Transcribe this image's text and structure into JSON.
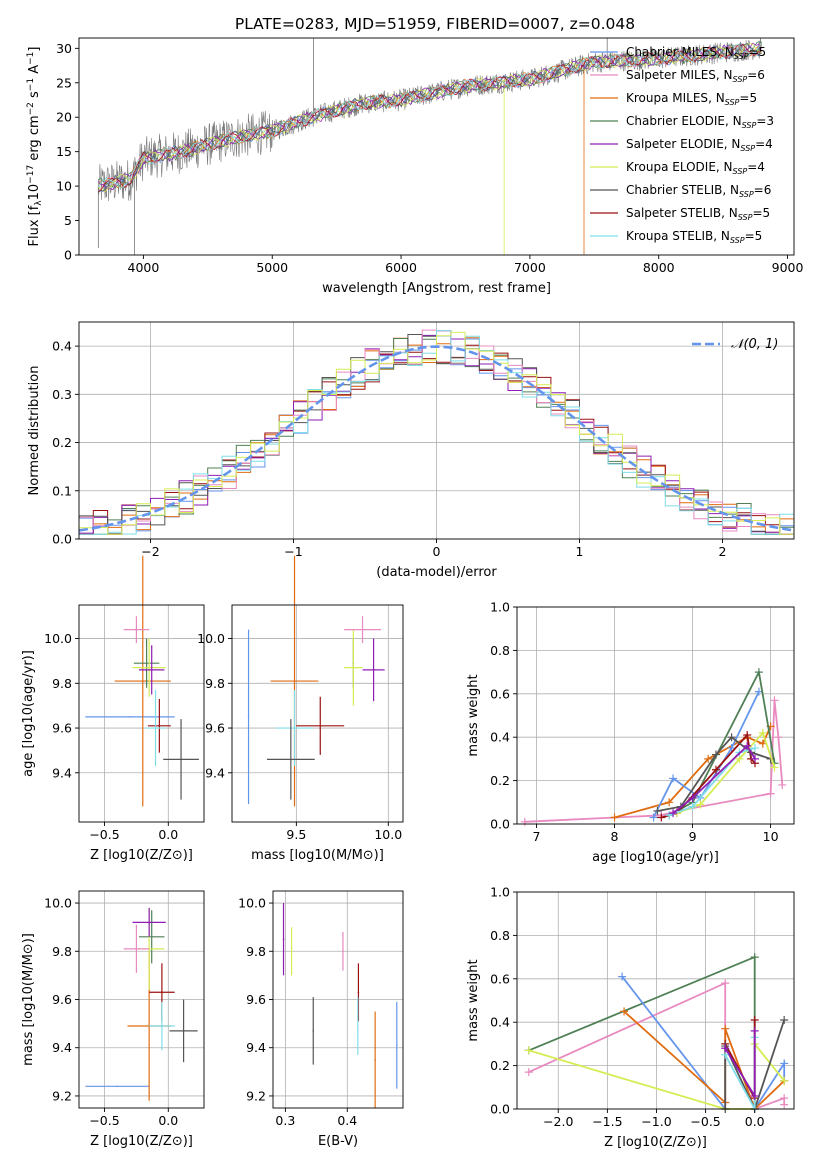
{
  "colors": {
    "blue": "#6495ED",
    "orange": "#E06C10",
    "green": "#4F8055",
    "red": "#9B1111",
    "purple": "#8E1DB5",
    "gray": "#555555",
    "pink": "#E88AC0",
    "cyan": "#7FDDE8",
    "yellow": "#D6EC55",
    "grid": "#b0b0b0"
  },
  "figure_title": "PLATE=0283, MJD=51959, FIBERID=0007, z=0.048",
  "chart_data": [
    {
      "id": "spectrum",
      "type": "line",
      "title": "PLATE=0283, MJD=51959, FIBERID=0007, z=0.048",
      "xlabel": "wavelength [Angstrom, rest frame]",
      "ylabel_main": "Flux [f",
      "ylabel_sub": "λ",
      "ylabel_mid": "10",
      "ylabel_sup": "−17",
      "ylabel_rest": " erg cm",
      "ylabel_sup2": "−2",
      "ylabel_rest2": " s",
      "ylabel_sup3": "−1",
      "ylabel_rest3": " A",
      "ylabel_sup4": "−1",
      "ylabel_end": "]",
      "xlim": [
        3500,
        9050
      ],
      "ylim": [
        0,
        31.5
      ],
      "xticks": [
        4000,
        5000,
        6000,
        7000,
        8000,
        9000
      ],
      "yticks": [
        0,
        5,
        10,
        15,
        20,
        25,
        30
      ],
      "grid": false,
      "legend_position": "right",
      "data_range": [
        3650,
        8800
      ],
      "continuum": [
        [
          3650,
          10
        ],
        [
          3900,
          11
        ],
        [
          4000,
          14
        ],
        [
          4300,
          15
        ],
        [
          4700,
          17
        ],
        [
          5000,
          18
        ],
        [
          5300,
          20
        ],
        [
          5700,
          22
        ],
        [
          6000,
          22.5
        ],
        [
          6500,
          24.5
        ],
        [
          7000,
          25.5
        ],
        [
          7500,
          28
        ],
        [
          8000,
          28.5
        ],
        [
          8800,
          30
        ]
      ],
      "series": [
        {
          "name": "Chabrier MILES",
          "nssp": "5",
          "color": "blue"
        },
        {
          "name": "Salpeter MILES",
          "nssp": "6",
          "color": "pink"
        },
        {
          "name": "Kroupa MILES",
          "nssp": "5",
          "color": "orange"
        },
        {
          "name": "Chabrier ELODIE",
          "nssp": "3",
          "color": "green"
        },
        {
          "name": "Salpeter ELODIE",
          "nssp": "4",
          "color": "purple"
        },
        {
          "name": "Kroupa ELODIE",
          "nssp": "4",
          "color": "yellow"
        },
        {
          "name": "Chabrier STELIB",
          "nssp": "6",
          "color": "gray"
        },
        {
          "name": "Salpeter STELIB",
          "nssp": "5",
          "color": "red"
        },
        {
          "name": "Kroupa STELIB",
          "nssp": "5",
          "color": "cyan"
        }
      ]
    },
    {
      "id": "residual-hist",
      "type": "line",
      "xlabel": "(data-model)/error",
      "ylabel": "Normed distribution",
      "xlim": [
        -2.5,
        2.5
      ],
      "ylim": [
        0,
        0.45
      ],
      "xticks": [
        -2,
        -1,
        0,
        1,
        2
      ],
      "yticks": [
        0.0,
        0.1,
        0.2,
        0.3,
        0.4
      ],
      "grid": true,
      "legend": "𝒩(0, 1)",
      "legend_position": "top-right",
      "bin_width": 0.1
    },
    {
      "id": "age-vs-Z",
      "type": "scatter",
      "xlabel": "Z [log10(Z/Z⊙)]",
      "ylabel": "age  [log10(age/yr)]",
      "xlim": [
        -0.7,
        0.28
      ],
      "ylim": [
        9.18,
        10.15
      ],
      "xticks": [
        -0.5,
        0.0
      ],
      "yticks": [
        9.4,
        9.6,
        9.8,
        10.0
      ],
      "grid": true,
      "points": [
        {
          "color": "blue",
          "x": -0.3,
          "y": 9.65,
          "xerr": 0.35,
          "yerr": 0.0
        },
        {
          "color": "orange",
          "x": -0.2,
          "y": 9.81,
          "xerr": 0.22,
          "yerr": 0.56
        },
        {
          "color": "green",
          "x": -0.17,
          "y": 9.89,
          "xerr": 0.1,
          "yerr": 0.11
        },
        {
          "color": "yellow",
          "x": -0.15,
          "y": 9.87,
          "xerr": 0.13,
          "yerr": 0.13
        },
        {
          "color": "purple",
          "x": -0.13,
          "y": 9.86,
          "xerr": 0.1,
          "yerr": 0.11
        },
        {
          "color": "pink",
          "x": -0.25,
          "y": 10.04,
          "xerr": 0.1,
          "yerr": 0.06
        },
        {
          "color": "red",
          "x": -0.07,
          "y": 9.61,
          "xerr": 0.09,
          "yerr": 0.12
        },
        {
          "color": "cyan",
          "x": -0.1,
          "y": 9.6,
          "xerr": 0.08,
          "yerr": 0.17
        },
        {
          "color": "gray",
          "x": 0.1,
          "y": 9.46,
          "xerr": 0.14,
          "yerr": 0.18
        }
      ]
    },
    {
      "id": "age-vs-mass",
      "type": "scatter",
      "xlabel": "mass [log10(M/M⊙)]",
      "ylabel": "",
      "xlim": [
        9.15,
        10.08
      ],
      "ylim": [
        9.18,
        10.15
      ],
      "xticks": [
        9.5,
        10.0
      ],
      "yticks": [
        9.4,
        9.6,
        9.8,
        10.0
      ],
      "grid": true,
      "points": [
        {
          "color": "blue",
          "x": 9.24,
          "y": 9.65,
          "xerr": 0.0,
          "yerr": 0.39
        },
        {
          "color": "orange",
          "x": 9.49,
          "y": 9.81,
          "xerr": 0.13,
          "yerr": 0.56
        },
        {
          "color": "green",
          "x": 9.81,
          "y": 9.89,
          "xerr": 0.0,
          "yerr": 0.11
        },
        {
          "color": "yellow",
          "x": 9.81,
          "y": 9.87,
          "xerr": 0.05,
          "yerr": 0.17
        },
        {
          "color": "purple",
          "x": 9.92,
          "y": 9.86,
          "xerr": 0.06,
          "yerr": 0.14
        },
        {
          "color": "pink",
          "x": 9.86,
          "y": 10.04,
          "xerr": 0.1,
          "yerr": 0.06
        },
        {
          "color": "red",
          "x": 9.63,
          "y": 9.61,
          "xerr": 0.13,
          "yerr": 0.13
        },
        {
          "color": "cyan",
          "x": 9.49,
          "y": 9.6,
          "xerr": 0.1,
          "yerr": 0.17
        },
        {
          "color": "gray",
          "x": 9.47,
          "y": 9.46,
          "xerr": 0.13,
          "yerr": 0.18
        }
      ]
    },
    {
      "id": "mass-weight-vs-age",
      "type": "line",
      "xlabel": "age  [log10(age/yr)]",
      "ylabel": "mass weight",
      "xlim": [
        6.75,
        10.3
      ],
      "ylim": [
        0,
        1.0
      ],
      "xticks": [
        7,
        8,
        9,
        10
      ],
      "yticks": [
        0.0,
        0.2,
        0.4,
        0.6,
        0.8,
        1.0
      ],
      "grid": true,
      "series": [
        {
          "color": "pink",
          "x": [
            6.85,
            8.6,
            8.8,
            10.0,
            10.05,
            10.1,
            10.15
          ],
          "y": [
            0.01,
            0.04,
            0.06,
            0.14,
            0.57,
            0.4,
            0.18
          ]
        },
        {
          "color": "orange",
          "x": [
            8.0,
            8.7,
            9.2,
            9.7,
            9.9,
            10.0
          ],
          "y": [
            0.03,
            0.1,
            0.3,
            0.4,
            0.37,
            0.45
          ]
        },
        {
          "color": "blue",
          "x": [
            8.5,
            8.75,
            9.1,
            9.5,
            9.85
          ],
          "y": [
            0.03,
            0.21,
            0.12,
            0.35,
            0.61
          ]
        },
        {
          "color": "green",
          "x": [
            8.7,
            9.0,
            9.85,
            10.05
          ],
          "y": [
            0.04,
            0.1,
            0.7,
            0.28
          ]
        },
        {
          "color": "red",
          "x": [
            8.6,
            8.8,
            9.3,
            9.7,
            9.75,
            9.8
          ],
          "y": [
            0.03,
            0.05,
            0.25,
            0.41,
            0.3,
            0.28
          ]
        },
        {
          "color": "gray",
          "x": [
            8.55,
            8.85,
            9.3,
            9.5,
            9.75,
            10.0
          ],
          "y": [
            0.06,
            0.08,
            0.32,
            0.4,
            0.33,
            0.3
          ]
        },
        {
          "color": "yellow",
          "x": [
            8.8,
            9.1,
            9.6,
            9.9,
            10.05
          ],
          "y": [
            0.05,
            0.09,
            0.3,
            0.42,
            0.26
          ]
        },
        {
          "color": "cyan",
          "x": [
            8.7,
            9.0,
            9.6,
            9.8
          ],
          "y": [
            0.04,
            0.08,
            0.33,
            0.35
          ]
        },
        {
          "color": "purple",
          "x": [
            8.75,
            9.0,
            9.7,
            9.8
          ],
          "y": [
            0.05,
            0.12,
            0.36,
            0.3
          ]
        }
      ]
    },
    {
      "id": "mass-vs-Z",
      "type": "scatter",
      "xlabel": "Z [log10(Z/Z⊙)]",
      "ylabel": "mass [log10(M/M⊙)]",
      "xlim": [
        -0.7,
        0.28
      ],
      "ylim": [
        9.15,
        10.05
      ],
      "xticks": [
        -0.5,
        0.0
      ],
      "yticks": [
        9.2,
        9.4,
        9.6,
        9.8,
        10.0
      ],
      "grid": true,
      "points": [
        {
          "color": "blue",
          "x": -0.4,
          "y": 9.24,
          "xerr": 0.25,
          "yerr": 0.0
        },
        {
          "color": "orange",
          "x": -0.15,
          "y": 9.49,
          "xerr": 0.17,
          "yerr": 0.31
        },
        {
          "color": "green",
          "x": -0.13,
          "y": 9.86,
          "xerr": 0.1,
          "yerr": 0.11
        },
        {
          "color": "yellow",
          "x": -0.15,
          "y": 9.81,
          "xerr": 0.12,
          "yerr": 0.17
        },
        {
          "color": "purple",
          "x": -0.15,
          "y": 9.92,
          "xerr": 0.13,
          "yerr": 0.06
        },
        {
          "color": "pink",
          "x": -0.25,
          "y": 9.81,
          "xerr": 0.1,
          "yerr": 0.1
        },
        {
          "color": "red",
          "x": -0.05,
          "y": 9.63,
          "xerr": 0.1,
          "yerr": 0.12
        },
        {
          "color": "cyan",
          "x": -0.05,
          "y": 9.49,
          "xerr": 0.1,
          "yerr": 0.1
        },
        {
          "color": "gray",
          "x": 0.12,
          "y": 9.47,
          "xerr": 0.11,
          "yerr": 0.13
        }
      ]
    },
    {
      "id": "mass-vs-ebv",
      "type": "scatter",
      "xlabel": "E(B-V)",
      "ylabel": "",
      "xlim": [
        0.28,
        0.49
      ],
      "ylim": [
        9.15,
        10.05
      ],
      "xticks": [
        0.3,
        0.4
      ],
      "yticks": [
        9.2,
        9.4,
        9.6,
        9.8,
        10.0
      ],
      "grid": true,
      "points": [
        {
          "color": "purple",
          "x": 0.297,
          "y": 9.85,
          "xerr": 0,
          "yerr": 0.15
        },
        {
          "color": "yellow",
          "x": 0.31,
          "y": 9.8,
          "xerr": 0,
          "yerr": 0.1
        },
        {
          "color": "gray",
          "x": 0.345,
          "y": 9.47,
          "xerr": 0,
          "yerr": 0.14
        },
        {
          "color": "pink",
          "x": 0.393,
          "y": 9.8,
          "xerr": 0,
          "yerr": 0.08
        },
        {
          "color": "red",
          "x": 0.418,
          "y": 9.63,
          "xerr": 0,
          "yerr": 0.12
        },
        {
          "color": "cyan",
          "x": 0.417,
          "y": 9.49,
          "xerr": 0,
          "yerr": 0.12
        },
        {
          "color": "orange",
          "x": 0.445,
          "y": 9.35,
          "xerr": 0,
          "yerr": 0.2
        },
        {
          "color": "blue",
          "x": 0.48,
          "y": 9.41,
          "xerr": 0,
          "yerr": 0.18
        }
      ]
    },
    {
      "id": "mass-weight-vs-Z",
      "type": "line",
      "xlabel": "Z [log10(Z/Z⊙)]",
      "ylabel": "mass weight",
      "xlim": [
        -2.42,
        0.4
      ],
      "ylim": [
        0,
        1.0
      ],
      "xticks": [
        -2.0,
        -1.5,
        -1.0,
        -0.5,
        0.0
      ],
      "yticks": [
        0.0,
        0.2,
        0.4,
        0.6,
        0.8,
        1.0
      ],
      "grid": true,
      "series": [
        {
          "color": "green",
          "x": [
            -2.3,
            0.0,
            0.0
          ],
          "y": [
            0.27,
            0.7,
            0.0
          ]
        },
        {
          "color": "pink",
          "x": [
            -2.3,
            -0.3,
            -0.3,
            0.0,
            0.3,
            0.3
          ],
          "y": [
            0.17,
            0.58,
            0.0,
            0.0,
            0.05,
            0.02
          ]
        },
        {
          "color": "blue",
          "x": [
            -1.35,
            -0.3,
            0.0,
            0.3,
            0.3
          ],
          "y": [
            0.61,
            0.0,
            0.0,
            0.21,
            0.13
          ]
        },
        {
          "color": "orange",
          "x": [
            -1.33,
            -0.3,
            -0.3,
            0.0,
            0.3
          ],
          "y": [
            0.45,
            0.03,
            0.37,
            0.0,
            0.13
          ]
        },
        {
          "color": "yellow",
          "x": [
            -2.3,
            -0.3,
            0.0,
            0.0,
            0.3
          ],
          "y": [
            0.27,
            0.0,
            0.0,
            0.3,
            0.13
          ]
        },
        {
          "color": "red",
          "x": [
            -0.3,
            0.0,
            0.0,
            0.0
          ],
          "y": [
            0.3,
            0.05,
            0.41,
            0.0
          ]
        },
        {
          "color": "gray",
          "x": [
            -0.3,
            -0.3,
            0.0,
            0.3
          ],
          "y": [
            0.0,
            0.29,
            0.0,
            0.41
          ]
        },
        {
          "color": "cyan",
          "x": [
            -0.3,
            0.0,
            0.0
          ],
          "y": [
            0.25,
            0.0,
            0.33
          ]
        },
        {
          "color": "purple",
          "x": [
            -0.3,
            0.0,
            0.0
          ],
          "y": [
            0.28,
            0.06,
            0.36
          ]
        }
      ]
    }
  ]
}
